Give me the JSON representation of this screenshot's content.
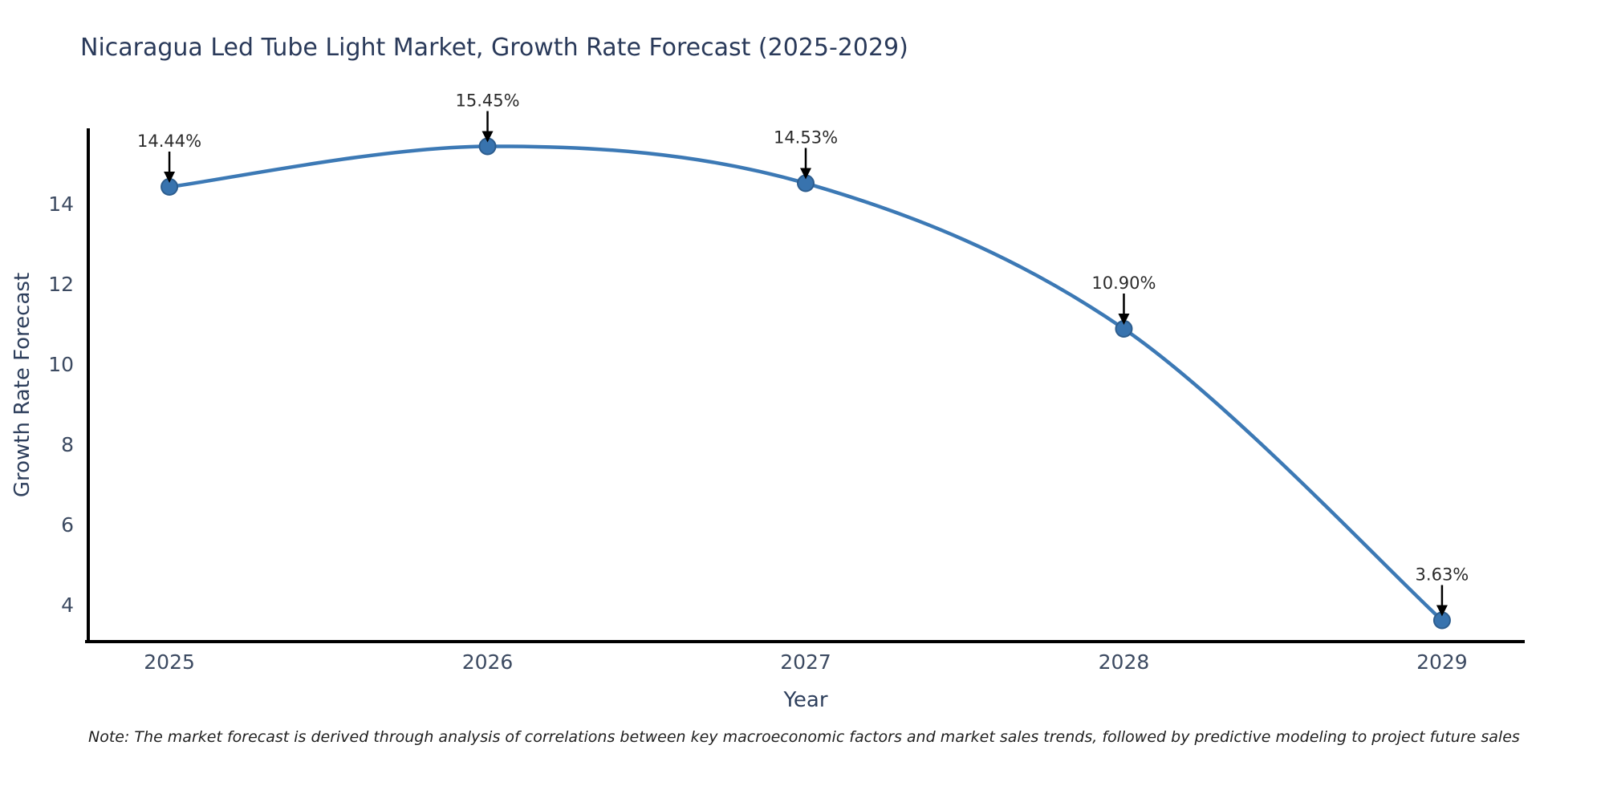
{
  "header": {
    "title": "Nicaragua Led Tube Light Market, Growth Rate Forecast (2025-2029)"
  },
  "chart_data": {
    "type": "line",
    "title": "Nicaragua Led Tube Light Market, Growth Rate Forecast (2025-2029)",
    "x": [
      2025,
      2026,
      2027,
      2028,
      2029
    ],
    "x_tick_labels": [
      "2025",
      "2026",
      "2027",
      "2028",
      "2029"
    ],
    "series": [
      {
        "name": "Growth Rate Forecast",
        "values": [
          14.44,
          15.45,
          14.53,
          10.9,
          3.63
        ]
      }
    ],
    "point_labels": [
      "14.44%",
      "15.45%",
      "14.53%",
      "10.90%",
      "3.63%"
    ],
    "xlabel": "Year",
    "ylabel": "Growth Rate Forecast",
    "y_ticks": [
      4,
      6,
      8,
      10,
      12,
      14
    ],
    "xlim": [
      2024.74,
      2029.26
    ],
    "ylim": [
      3.1,
      15.9
    ],
    "grid": false,
    "legend": "none",
    "line_shape": "spline",
    "colors": {
      "line": "#3c79b5",
      "marker_fill": "#3873ae",
      "marker_edge": "#2d5d8e",
      "axis": "#000000",
      "tick_text": "#3c4a61",
      "title_text": "#2a3a5a",
      "annotation_text": "#2b2b2b",
      "arrow": "#000000"
    }
  },
  "footer": {
    "note": "Note: The market forecast is derived through analysis of correlations between key macroeconomic factors and market sales trends, followed by predictive modeling to project future sales"
  }
}
